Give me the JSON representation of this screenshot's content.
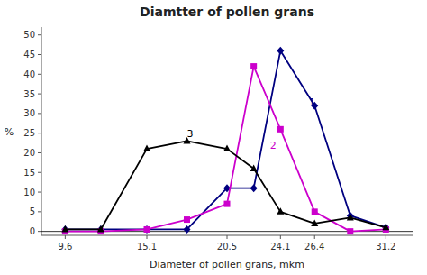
{
  "chart_data": {
    "type": "line",
    "title": "Diamtter of pollen grans",
    "xlabel": "Diameter of pollen grans, mkm",
    "ylabel": "%",
    "x": [
      9.6,
      12.0,
      15.1,
      17.8,
      20.5,
      22.3,
      24.1,
      26.4,
      28.8,
      31.2
    ],
    "xlim": [
      8.0,
      33.0
    ],
    "xticks": [
      9.6,
      15.1,
      20.5,
      24.1,
      26.4,
      31.2
    ],
    "ylim": [
      -1,
      52
    ],
    "yticks": [
      0,
      5,
      10,
      15,
      20,
      25,
      30,
      35,
      40,
      45,
      50
    ],
    "grid": false,
    "series": [
      {
        "color": "#000080",
        "marker": "diamond",
        "values": [
          0.5,
          0.5,
          0.5,
          0.5,
          11,
          11,
          46,
          32,
          4,
          1
        ]
      },
      {
        "color": "#CC00CC",
        "marker": "square",
        "values": [
          0,
          0,
          0.5,
          3,
          7,
          42,
          26,
          5,
          0,
          0.5
        ]
      },
      {
        "color": "#000000",
        "marker": "triangle",
        "values": [
          0.5,
          0.5,
          21,
          23,
          21,
          16,
          5,
          2,
          3.5,
          1
        ]
      }
    ],
    "annotations": [
      {
        "text": "1",
        "x": 26.0,
        "y": 33,
        "color": "#000080"
      },
      {
        "text": "2",
        "x": 23.4,
        "y": 22,
        "color": "#CC00CC"
      },
      {
        "text": "3",
        "x": 17.8,
        "y": 25,
        "color": "#000000"
      }
    ]
  }
}
